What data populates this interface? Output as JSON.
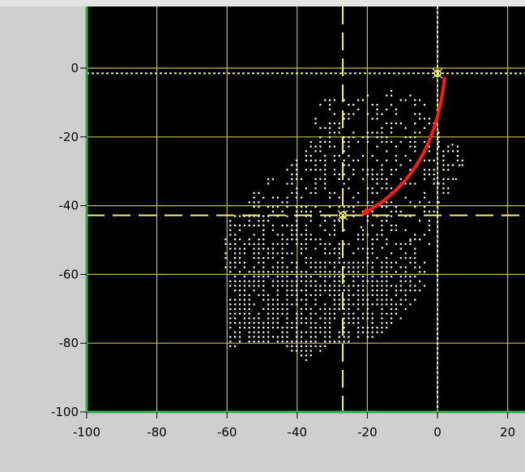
{
  "chart_data": {
    "type": "scatter",
    "title": "",
    "xlabel": "",
    "ylabel": "",
    "xlim": [
      -100,
      25
    ],
    "ylim": [
      -100,
      16
    ],
    "x_ticks": [
      -100,
      -80,
      -60,
      -40,
      -20,
      0,
      20
    ],
    "y_ticks": [
      0,
      -20,
      -40,
      -60,
      -80,
      -100
    ],
    "grid": true,
    "colors": {
      "plot_background": "#000000",
      "grid": "#bfbf5a",
      "points": "#ffffff",
      "cursor": "#f2f27a",
      "arrow": "#ff1a1a",
      "axis_line": "#34b34a",
      "panel": "#cfcfcf"
    },
    "cursors": [
      {
        "name": "",
        "x": 0,
        "y": -1.5,
        "style": "dotted"
      },
      {
        "name": "",
        "x": -27,
        "y": -42.8,
        "style": "dashed"
      }
    ],
    "annotations": [
      {
        "type": "arrow",
        "from": [
          2,
          -3
        ],
        "to": [
          -23,
          -42.8
        ],
        "color": "#ff1a1a"
      }
    ],
    "point_cloud": {
      "description_free": true,
      "outline": [
        [
          -6,
          -5
        ],
        [
          -2,
          -14
        ],
        [
          8,
          -25
        ],
        [
          4,
          -36
        ],
        [
          -2,
          -43
        ],
        [
          -3,
          -62
        ],
        [
          -10,
          -72
        ],
        [
          -18,
          -78
        ],
        [
          -30,
          -80
        ],
        [
          -38,
          -85
        ],
        [
          -45,
          -80
        ],
        [
          -60,
          -81
        ],
        [
          -61,
          -46
        ],
        [
          -52,
          -34
        ],
        [
          -40,
          -26
        ],
        [
          -36,
          -20
        ],
        [
          -35,
          -10
        ],
        [
          -25,
          -5
        ],
        [
          -15,
          -6
        ]
      ],
      "density_step": 1.35
    }
  }
}
